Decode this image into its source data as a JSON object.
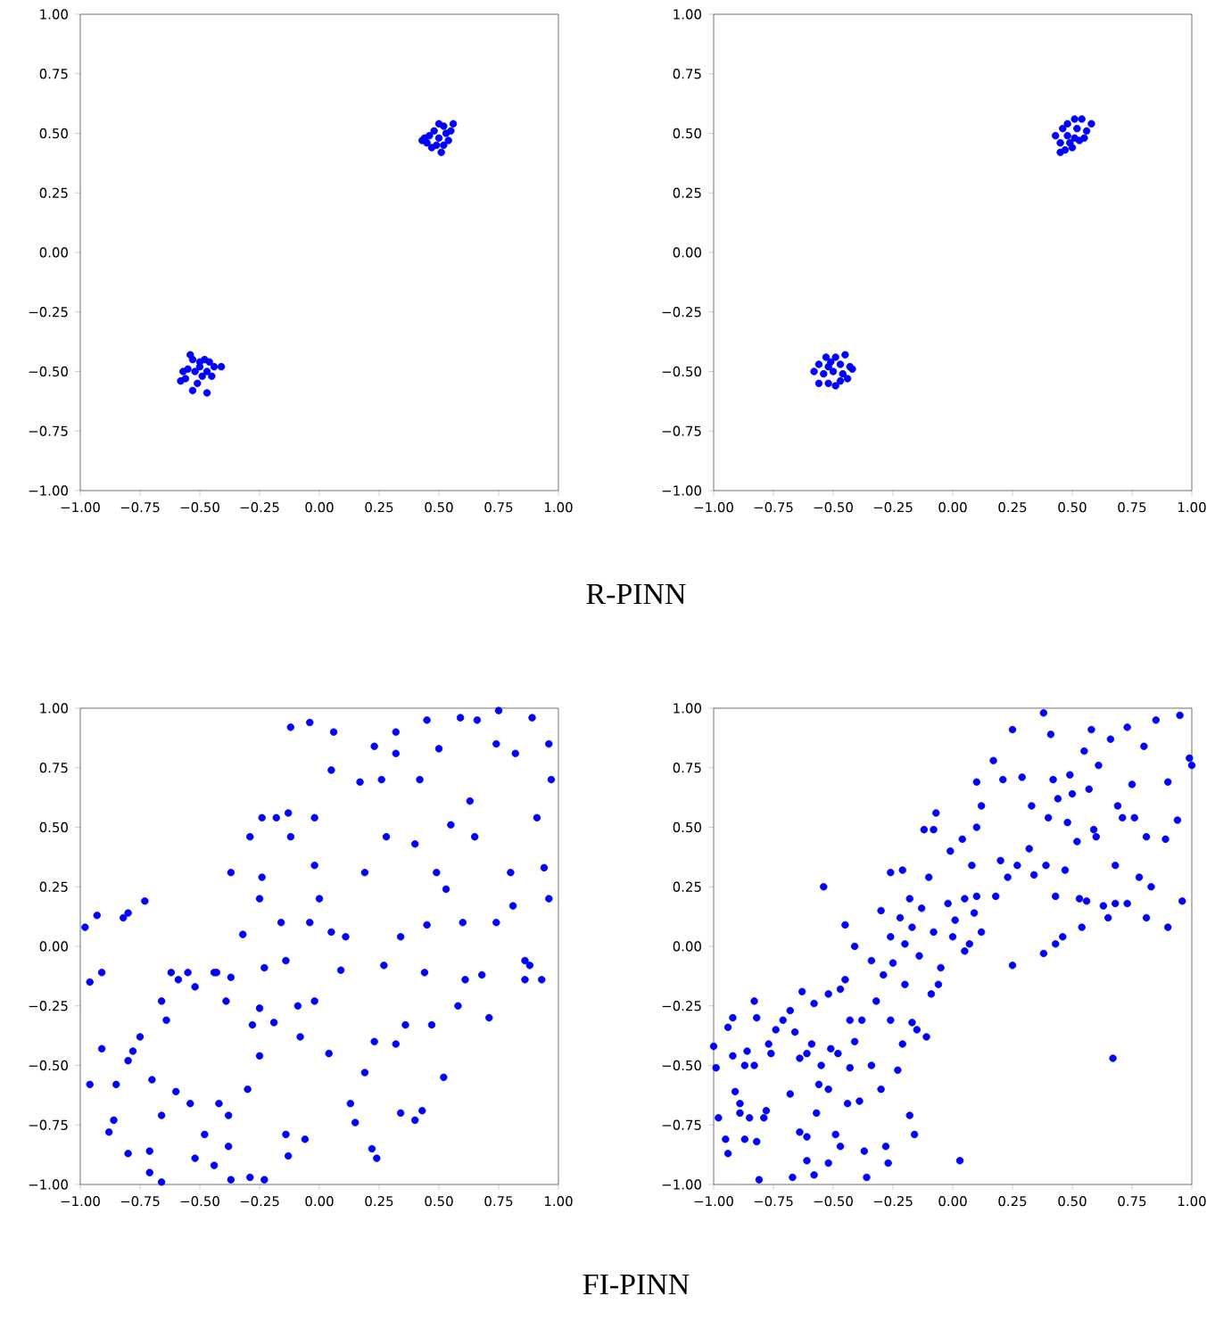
{
  "chart_data": [
    {
      "type": "scatter",
      "marker": "circle",
      "color": "#0000ff",
      "annotations": [
        "R-PINN"
      ],
      "xlim": [
        -1,
        1
      ],
      "ylim": [
        -1,
        1
      ],
      "xticks": [
        {
          "value": -1,
          "label": "−1.00"
        },
        {
          "value": -0.75,
          "label": "−0.75"
        },
        {
          "value": -0.5,
          "label": "−0.50"
        },
        {
          "value": -0.25,
          "label": "−0.25"
        },
        {
          "value": 0,
          "label": "0.00"
        },
        {
          "value": 0.25,
          "label": "0.25"
        },
        {
          "value": 0.5,
          "label": "0.50"
        },
        {
          "value": 0.75,
          "label": "0.75"
        },
        {
          "value": 1,
          "label": "1.00"
        }
      ],
      "yticks": [
        {
          "value": -1,
          "label": "−1.00"
        },
        {
          "value": -0.75,
          "label": "−0.75"
        },
        {
          "value": -0.5,
          "label": "−0.50"
        },
        {
          "value": -0.25,
          "label": "−0.25"
        },
        {
          "value": 0,
          "label": "0.00"
        },
        {
          "value": 0.25,
          "label": "0.25"
        },
        {
          "value": 0.5,
          "label": "0.50"
        },
        {
          "value": 0.75,
          "label": "0.75"
        },
        {
          "value": 1,
          "label": "1.00"
        }
      ],
      "x": [
        -0.54,
        -0.53,
        -0.48,
        -0.46,
        -0.44,
        -0.5,
        -0.55,
        -0.57,
        -0.52,
        -0.47,
        -0.49,
        -0.56,
        -0.58,
        -0.51,
        -0.53,
        -0.47,
        -0.45,
        -0.41,
        -0.5,
        0.5,
        0.52,
        0.56,
        0.48,
        0.46,
        0.43,
        0.45,
        0.5,
        0.53,
        0.55,
        0.47,
        0.51,
        0.49,
        0.44,
        0.54,
        0.52
      ],
      "values": [
        -0.43,
        -0.45,
        -0.45,
        -0.46,
        -0.48,
        -0.48,
        -0.49,
        -0.5,
        -0.5,
        -0.5,
        -0.52,
        -0.53,
        -0.54,
        -0.55,
        -0.58,
        -0.59,
        -0.52,
        -0.48,
        -0.46,
        0.54,
        0.53,
        0.54,
        0.51,
        0.49,
        0.47,
        0.46,
        0.48,
        0.5,
        0.51,
        0.44,
        0.42,
        0.45,
        0.48,
        0.47,
        0.45
      ]
    },
    {
      "type": "scatter",
      "marker": "circle",
      "color": "#0000ff",
      "xlim": [
        -1,
        1
      ],
      "ylim": [
        -1,
        1
      ],
      "xticks": [
        {
          "value": -1,
          "label": "−1.00"
        },
        {
          "value": -0.75,
          "label": "−0.75"
        },
        {
          "value": -0.5,
          "label": "−0.50"
        },
        {
          "value": -0.25,
          "label": "−0.25"
        },
        {
          "value": 0,
          "label": "0.00"
        },
        {
          "value": 0.25,
          "label": "0.25"
        },
        {
          "value": 0.5,
          "label": "0.50"
        },
        {
          "value": 0.75,
          "label": "0.75"
        },
        {
          "value": 1,
          "label": "1.00"
        }
      ],
      "yticks": [
        {
          "value": -1,
          "label": "−1.00"
        },
        {
          "value": -0.75,
          "label": "−0.75"
        },
        {
          "value": -0.5,
          "label": "−0.50"
        },
        {
          "value": -0.25,
          "label": "−0.25"
        },
        {
          "value": 0,
          "label": "0.00"
        },
        {
          "value": 0.25,
          "label": "0.25"
        },
        {
          "value": 0.5,
          "label": "0.50"
        },
        {
          "value": 0.75,
          "label": "0.75"
        },
        {
          "value": 1,
          "label": "1.00"
        }
      ],
      "x": [
        -0.53,
        -0.49,
        -0.45,
        -0.56,
        -0.52,
        -0.47,
        -0.42,
        -0.58,
        -0.54,
        -0.5,
        -0.46,
        -0.44,
        -0.56,
        -0.52,
        -0.49,
        -0.47,
        -0.51,
        -0.43,
        0.51,
        0.54,
        0.58,
        0.48,
        0.46,
        0.52,
        0.56,
        0.43,
        0.48,
        0.51,
        0.55,
        0.45,
        0.49,
        0.53,
        0.45,
        0.5,
        0.47
      ],
      "values": [
        -0.44,
        -0.44,
        -0.43,
        -0.47,
        -0.48,
        -0.47,
        -0.49,
        -0.5,
        -0.51,
        -0.5,
        -0.51,
        -0.53,
        -0.55,
        -0.55,
        -0.56,
        -0.54,
        -0.46,
        -0.48,
        0.56,
        0.56,
        0.54,
        0.54,
        0.52,
        0.52,
        0.51,
        0.49,
        0.49,
        0.48,
        0.48,
        0.46,
        0.46,
        0.47,
        0.42,
        0.44,
        0.43
      ]
    },
    {
      "type": "scatter",
      "marker": "circle",
      "color": "#0000ff",
      "annotations": [
        "FI-PINN"
      ],
      "xlim": [
        -1,
        1
      ],
      "ylim": [
        -1,
        1
      ],
      "xticks": [
        {
          "value": -1,
          "label": "−1.00"
        },
        {
          "value": -0.75,
          "label": "−0.75"
        },
        {
          "value": -0.5,
          "label": "−0.50"
        },
        {
          "value": -0.25,
          "label": "−0.25"
        },
        {
          "value": 0,
          "label": "0.00"
        },
        {
          "value": 0.25,
          "label": "0.25"
        },
        {
          "value": 0.5,
          "label": "0.50"
        },
        {
          "value": 0.75,
          "label": "0.75"
        },
        {
          "value": 1,
          "label": "1.00"
        }
      ],
      "yticks": [
        {
          "value": -1,
          "label": "−1.00"
        },
        {
          "value": -0.75,
          "label": "−0.75"
        },
        {
          "value": -0.5,
          "label": "−0.50"
        },
        {
          "value": -0.25,
          "label": "−0.25"
        },
        {
          "value": 0,
          "label": "0.00"
        },
        {
          "value": 0.25,
          "label": "0.25"
        },
        {
          "value": 0.5,
          "label": "0.50"
        },
        {
          "value": 0.75,
          "label": "0.75"
        },
        {
          "value": 1,
          "label": "1.00"
        }
      ],
      "x": [
        -0.98,
        -0.93,
        -0.91,
        -0.96,
        -0.91,
        -0.96,
        -0.85,
        -0.82,
        -0.8,
        -0.73,
        -0.75,
        -0.78,
        -0.8,
        -0.7,
        -0.66,
        -0.64,
        -0.62,
        -0.59,
        -0.55,
        -0.52,
        -0.44,
        -0.43,
        -0.39,
        -0.37,
        -0.32,
        -0.29,
        -0.37,
        -0.25,
        -0.28,
        -0.25,
        -0.23,
        -0.25,
        -0.24,
        -0.24,
        -0.18,
        -0.19,
        -0.13,
        -0.12,
        -0.16,
        -0.14,
        -0.12,
        -0.09,
        -0.08,
        -0.04,
        -0.02,
        -0.02,
        -0.04,
        -0.02,
        0.0,
        0.04,
        0.05,
        0.05,
        0.06,
        0.09,
        0.11,
        0.13,
        0.15,
        0.17,
        0.19,
        0.19,
        0.23,
        0.23,
        0.22,
        0.24,
        0.27,
        0.26,
        0.28,
        0.32,
        0.32,
        0.32,
        0.34,
        0.34,
        0.36,
        0.4,
        0.4,
        0.42,
        0.43,
        0.44,
        0.45,
        0.45,
        0.47,
        0.49,
        0.5,
        0.52,
        0.53,
        0.55,
        0.58,
        0.59,
        0.6,
        0.61,
        0.63,
        0.65,
        0.66,
        0.68,
        0.71,
        0.74,
        0.74,
        0.75,
        0.8,
        0.82,
        0.81,
        0.86,
        0.86,
        0.88,
        0.89,
        0.93,
        0.91,
        0.94,
        0.96,
        0.97,
        0.96,
        -0.86,
        -0.88,
        -0.8,
        -0.71,
        -0.71,
        -0.66,
        -0.6,
        -0.52,
        -0.44,
        -0.38,
        -0.37,
        -0.29,
        -0.23,
        -0.3,
        -0.38,
        -0.48,
        -0.54,
        -0.42,
        -0.14,
        -0.13,
        -0.06,
        -0.66
      ],
      "values": [
        0.08,
        0.13,
        -0.11,
        -0.15,
        -0.43,
        -0.58,
        -0.58,
        0.12,
        0.14,
        0.19,
        -0.38,
        -0.44,
        -0.48,
        -0.56,
        -0.23,
        -0.31,
        -0.11,
        -0.14,
        -0.11,
        -0.17,
        -0.11,
        -0.11,
        -0.23,
        -0.13,
        0.05,
        0.46,
        0.31,
        -0.26,
        -0.33,
        -0.46,
        -0.09,
        0.2,
        0.29,
        0.54,
        0.54,
        -0.32,
        0.56,
        0.92,
        0.1,
        -0.06,
        0.46,
        -0.25,
        -0.38,
        0.94,
        0.34,
        0.54,
        0.1,
        -0.23,
        0.2,
        -0.45,
        0.06,
        0.74,
        0.9,
        -0.1,
        0.04,
        -0.66,
        -0.74,
        0.69,
        0.31,
        -0.53,
        0.84,
        -0.4,
        -0.85,
        -0.89,
        -0.08,
        0.7,
        0.46,
        0.9,
        0.81,
        -0.41,
        0.04,
        -0.7,
        -0.33,
        -0.73,
        0.43,
        0.7,
        -0.69,
        -0.11,
        0.95,
        0.09,
        -0.33,
        0.31,
        0.83,
        -0.55,
        0.24,
        0.51,
        -0.25,
        0.96,
        0.1,
        -0.14,
        0.61,
        0.46,
        0.95,
        -0.12,
        -0.3,
        0.85,
        0.1,
        0.99,
        0.31,
        0.81,
        0.17,
        -0.06,
        -0.14,
        -0.08,
        0.96,
        -0.14,
        0.54,
        0.33,
        0.2,
        0.7,
        0.85,
        -0.73,
        -0.78,
        -0.87,
        -0.86,
        -0.95,
        -0.99,
        -0.61,
        -0.89,
        -0.92,
        -0.84,
        -0.98,
        -0.97,
        -0.98,
        -0.6,
        -0.71,
        -0.79,
        -0.66,
        -0.66,
        -0.79,
        -0.88,
        -0.81,
        -0.71
      ]
    },
    {
      "type": "scatter",
      "marker": "circle",
      "color": "#0000ff",
      "xlim": [
        -1,
        1
      ],
      "ylim": [
        -1,
        1
      ],
      "xticks": [
        {
          "value": -1,
          "label": "−1.00"
        },
        {
          "value": -0.75,
          "label": "−0.75"
        },
        {
          "value": -0.5,
          "label": "−0.50"
        },
        {
          "value": -0.25,
          "label": "−0.25"
        },
        {
          "value": 0,
          "label": "0.00"
        },
        {
          "value": 0.25,
          "label": "0.25"
        },
        {
          "value": 0.5,
          "label": "0.50"
        },
        {
          "value": 0.75,
          "label": "0.75"
        },
        {
          "value": 1,
          "label": "1.00"
        }
      ],
      "yticks": [
        {
          "value": -1,
          "label": "−1.00"
        },
        {
          "value": -0.75,
          "label": "−0.75"
        },
        {
          "value": -0.5,
          "label": "−0.50"
        },
        {
          "value": -0.25,
          "label": "−0.25"
        },
        {
          "value": 0,
          "label": "0.00"
        },
        {
          "value": 0.25,
          "label": "0.25"
        },
        {
          "value": 0.5,
          "label": "0.50"
        },
        {
          "value": 0.75,
          "label": "0.75"
        },
        {
          "value": 1,
          "label": "1.00"
        }
      ],
      "x": [
        -1,
        -0.99,
        -0.98,
        -0.95,
        -0.94,
        -0.94,
        -0.92,
        -0.92,
        -0.91,
        -0.89,
        -0.89,
        -0.87,
        -0.87,
        -0.85,
        -0.86,
        -0.83,
        -0.83,
        -0.82,
        -0.82,
        -0.81,
        -0.79,
        -0.78,
        -0.77,
        -0.76,
        -0.74,
        -0.71,
        -0.68,
        -0.68,
        -0.67,
        -0.66,
        -0.64,
        -0.64,
        -0.63,
        -0.61,
        -0.61,
        -0.61,
        -0.59,
        -0.58,
        -0.58,
        -0.57,
        -0.56,
        -0.55,
        -0.54,
        -0.52,
        -0.52,
        -0.52,
        -0.51,
        -0.49,
        -0.48,
        -0.47,
        -0.47,
        -0.45,
        -0.45,
        -0.44,
        -0.43,
        -0.43,
        -0.41,
        -0.41,
        -0.39,
        -0.38,
        -0.37,
        -0.36,
        -0.34,
        -0.34,
        -0.32,
        -0.3,
        -0.3,
        -0.29,
        -0.28,
        -0.27,
        -0.26,
        -0.26,
        -0.26,
        -0.25,
        -0.23,
        -0.22,
        -0.21,
        -0.21,
        -0.2,
        -0.2,
        -0.18,
        -0.18,
        -0.17,
        -0.17,
        -0.16,
        -0.15,
        -0.14,
        -0.13,
        -0.12,
        -0.11,
        -0.1,
        -0.09,
        -0.08,
        -0.08,
        -0.07,
        -0.06,
        -0.05,
        -0.02,
        -0.01,
        0.0,
        0.01,
        0.03,
        0.04,
        0.05,
        0.05,
        0.07,
        0.08,
        0.09,
        0.1,
        0.1,
        0.1,
        0.12,
        0.12,
        0.17,
        0.18,
        0.2,
        0.21,
        0.23,
        0.25,
        0.25,
        0.27,
        0.29,
        0.32,
        0.33,
        0.34,
        0.38,
        0.38,
        0.39,
        0.4,
        0.41,
        0.42,
        0.43,
        0.43,
        0.44,
        0.46,
        0.47,
        0.48,
        0.49,
        0.5,
        0.52,
        0.53,
        0.54,
        0.55,
        0.56,
        0.57,
        0.58,
        0.59,
        0.6,
        0.61,
        0.63,
        0.65,
        0.66,
        0.67,
        0.68,
        0.68,
        0.69,
        0.71,
        0.73,
        0.73,
        0.75,
        0.76,
        0.78,
        0.8,
        0.81,
        0.81,
        0.83,
        0.85,
        0.89,
        0.9,
        0.9,
        0.94,
        0.95,
        0.96,
        0.99,
        1.0
      ],
      "values": [
        -0.42,
        -0.51,
        -0.72,
        -0.81,
        -0.87,
        -0.34,
        -0.3,
        -0.46,
        -0.61,
        -0.66,
        -0.7,
        -0.5,
        -0.81,
        -0.72,
        -0.44,
        -0.23,
        -0.5,
        -0.3,
        -0.82,
        -0.98,
        -0.72,
        -0.69,
        -0.41,
        -0.45,
        -0.35,
        -0.31,
        -0.27,
        -0.62,
        -0.97,
        -0.36,
        -0.78,
        -0.47,
        -0.19,
        -0.9,
        -0.8,
        -0.45,
        -0.41,
        -0.24,
        -0.96,
        -0.7,
        -0.58,
        -0.5,
        0.25,
        -0.91,
        -0.2,
        -0.6,
        -0.43,
        -0.79,
        -0.45,
        -0.18,
        -0.84,
        -0.14,
        0.09,
        -0.66,
        -0.51,
        -0.31,
        -0.4,
        0.0,
        -0.65,
        -0.31,
        -0.86,
        -0.97,
        -0.06,
        -0.5,
        -0.23,
        0.15,
        -0.6,
        -0.12,
        -0.84,
        -0.91,
        0.04,
        0.31,
        -0.31,
        -0.07,
        -0.52,
        0.12,
        0.32,
        -0.41,
        -0.16,
        0.01,
        0.2,
        -0.71,
        -0.32,
        0.08,
        -0.79,
        -0.35,
        -0.04,
        0.16,
        0.49,
        -0.38,
        0.29,
        -0.2,
        0.06,
        0.49,
        0.56,
        -0.16,
        -0.09,
        0.18,
        0.4,
        0.04,
        0.11,
        -0.9,
        0.45,
        0.2,
        -0.02,
        0.01,
        0.34,
        0.14,
        0.5,
        0.69,
        0.21,
        0.06,
        0.59,
        0.78,
        0.21,
        0.36,
        0.7,
        0.29,
        0.91,
        -0.08,
        0.34,
        0.71,
        0.41,
        0.59,
        0.3,
        0.98,
        -0.03,
        0.34,
        0.54,
        0.89,
        0.7,
        0.21,
        0.01,
        0.62,
        0.04,
        0.32,
        0.52,
        0.72,
        0.64,
        0.44,
        0.2,
        0.08,
        0.82,
        0.19,
        0.66,
        0.91,
        0.49,
        0.46,
        0.76,
        0.17,
        0.12,
        0.87,
        -0.47,
        0.34,
        0.18,
        0.59,
        0.54,
        0.92,
        0.18,
        0.68,
        0.54,
        0.29,
        0.84,
        0.12,
        0.46,
        0.25,
        0.95,
        0.45,
        0.08,
        0.69,
        0.53,
        0.97,
        0.19,
        0.79,
        0.76
      ]
    }
  ]
}
